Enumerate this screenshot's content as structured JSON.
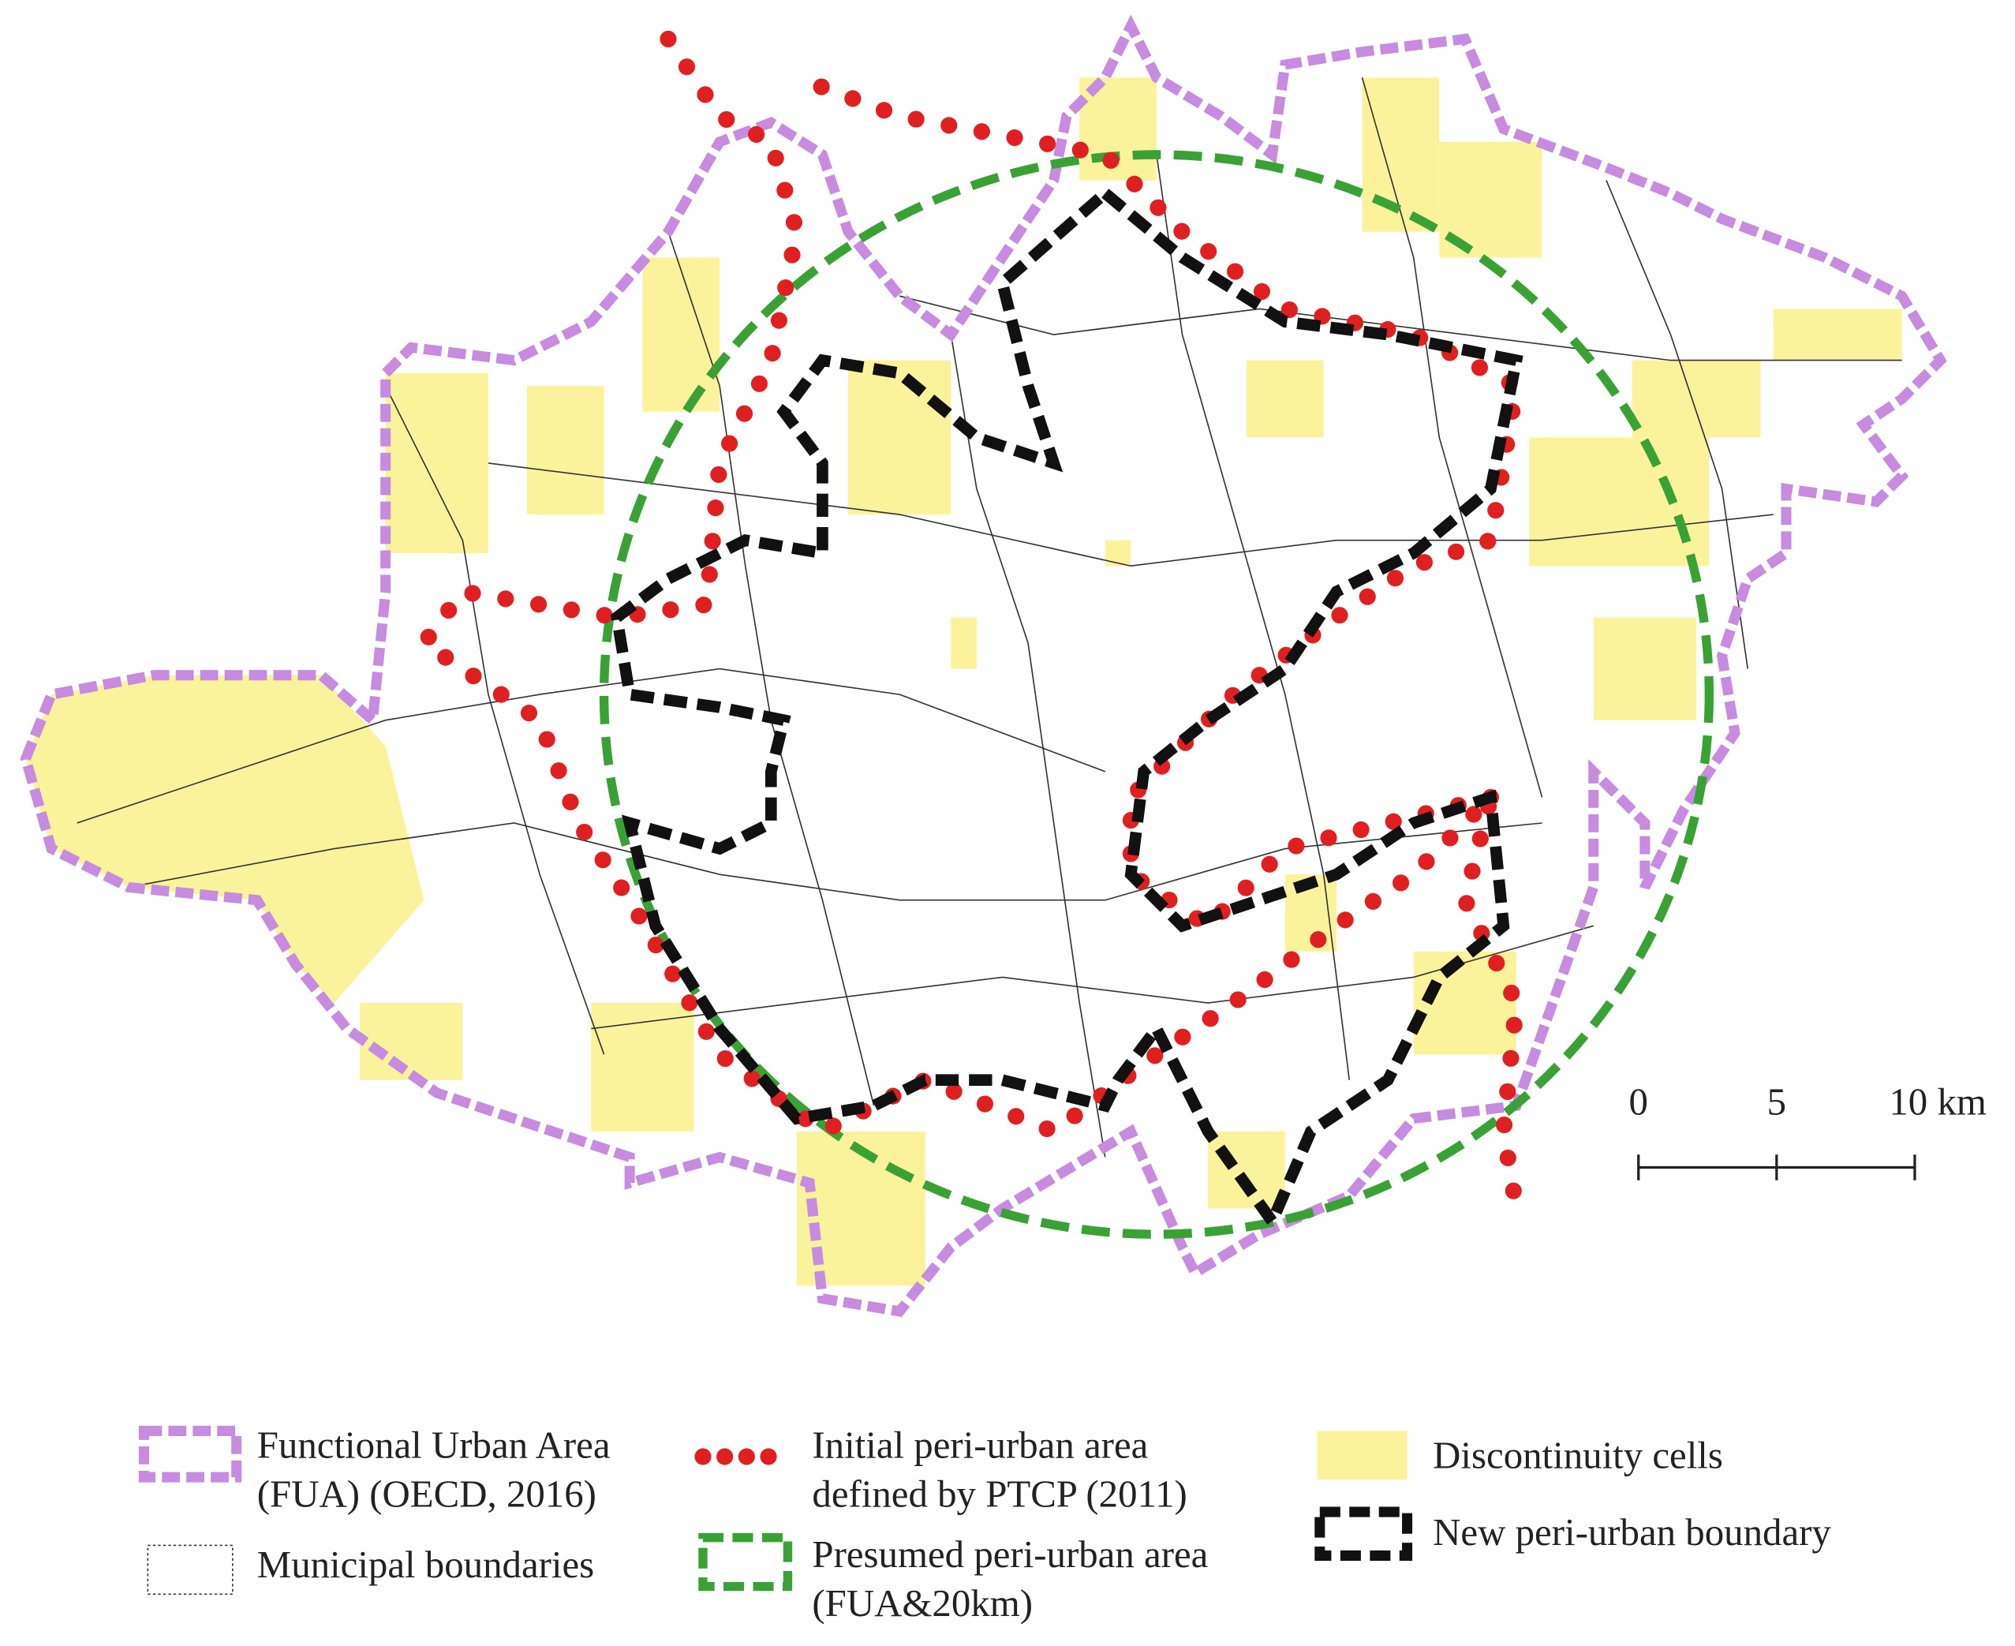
{
  "legend": [
    {
      "lines": [
        "Functional Urban Area",
        "(FUA) (OECD, 2016)"
      ]
    },
    {
      "lines": [
        "Initial peri-urban area",
        "defined by PTCP (2011)"
      ]
    },
    {
      "lines": [
        "Discontinuity cells"
      ]
    },
    {
      "lines": [
        "Municipal boundaries"
      ]
    },
    {
      "lines": [
        "Presumed peri-urban area",
        "(FUA&20km)"
      ]
    },
    {
      "lines": [
        "New peri-urban boundary"
      ]
    }
  ],
  "scale_bar": {
    "ticks": [
      0,
      5,
      {
        "value": 10,
        "label": "10 km"
      }
    ]
  }
}
